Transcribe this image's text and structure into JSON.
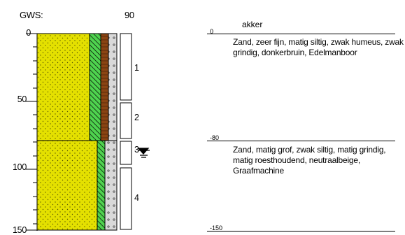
{
  "header": {
    "gws_label": "GWS:",
    "gws_value": "90"
  },
  "depth_axis": {
    "ticks": [
      "0",
      "50",
      "100",
      "150"
    ]
  },
  "layers": [
    {
      "number": "1"
    },
    {
      "number": "2"
    },
    {
      "number": "3"
    },
    {
      "number": "4"
    }
  ],
  "description": {
    "title": "akker",
    "boundaries": [
      "0",
      "-80",
      "-150"
    ],
    "units": [
      {
        "text": "Zand, zeer fijn, matig siltig, zwak humeus, zwak grindig, donkerbruin, Edelmanboor"
      },
      {
        "text": "Zand, matig grof, zwak siltig, matig grindig, matig roesthoudend, neutraalbeige, Graafmachine"
      }
    ]
  },
  "colors": {
    "sand": "#e4e000",
    "sand_dots": "#5a5a00",
    "hatch_green": "#4fd34f",
    "humus_brown": "#8b4513",
    "gravel_gray": "#d9d9d9",
    "groundwater_icon": "water-table-symbol"
  }
}
